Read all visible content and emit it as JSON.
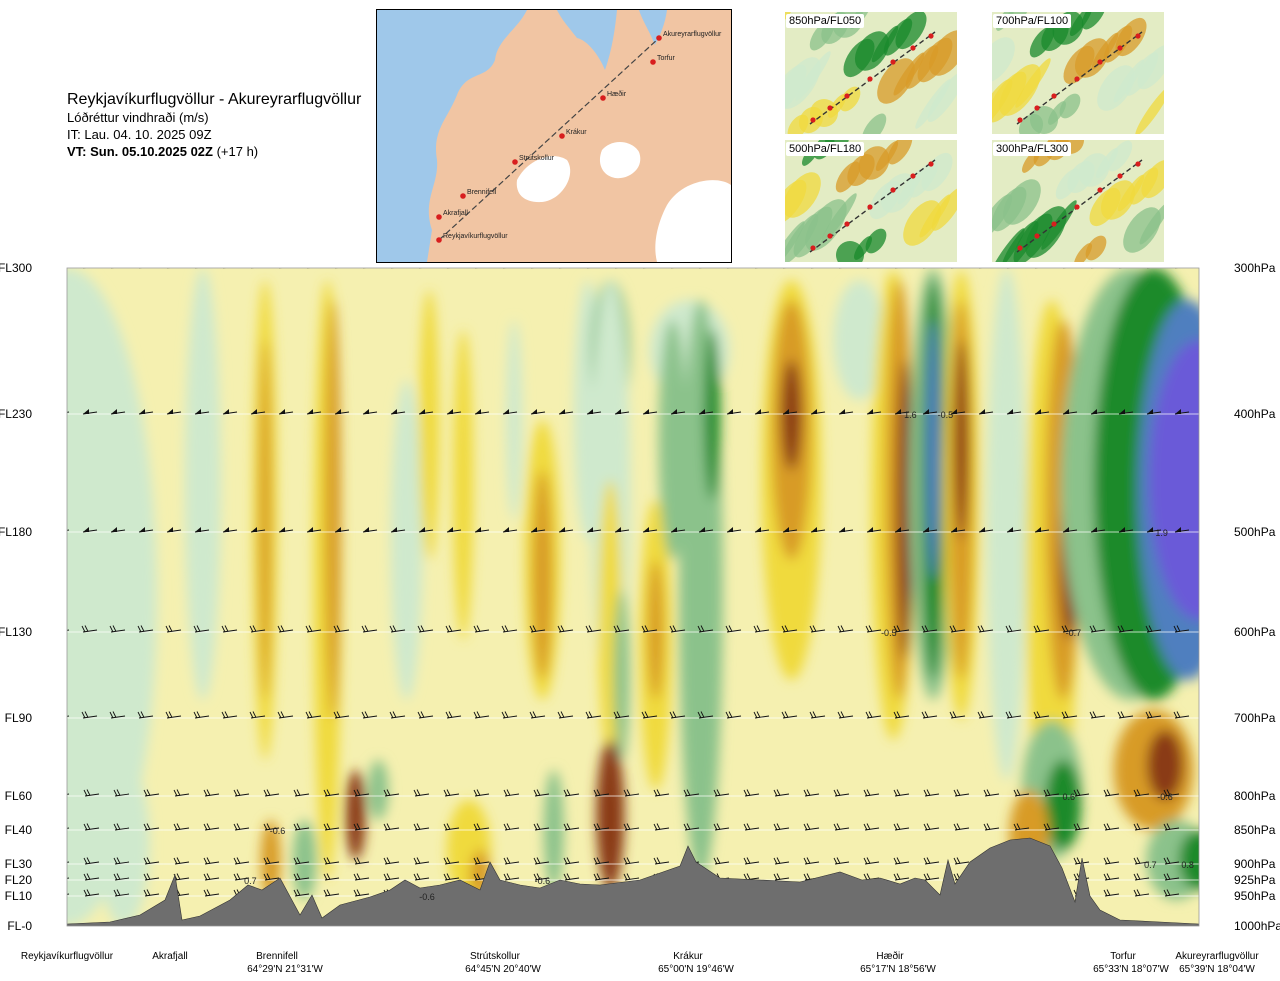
{
  "header": {
    "title": "Reykjavíkurflugvöllur - Akureyrarflugvöllur",
    "subtitle": "Lóðréttur vindhraði (m/s)",
    "issue_time": "IT: Lau. 04. 10. 2025 09Z",
    "valid_time": "VT: Sun. 05.10.2025 02Z",
    "lead": " (+17 h)"
  },
  "map": {
    "waypoints": [
      "Akureyrarflugvöllur",
      "Torfur",
      "Hæðir",
      "Krákur",
      "Strútskollur",
      "Brennifell",
      "Akrafjall",
      "Reykjavíkurflugvöllur"
    ],
    "colors": {
      "sea": "#9fc8ea",
      "land": "#f1c5a3",
      "ice": "#ffffff",
      "route": "#d81e1e"
    }
  },
  "minimaps": [
    {
      "label": "850hPa/FL050"
    },
    {
      "label": "700hPa/FL100"
    },
    {
      "label": "500hPa/FL180"
    },
    {
      "label": "300hPa/FL300"
    }
  ],
  "chart_data": {
    "type": "heatmap",
    "title": "Lóðréttur vindhraði (m/s)",
    "left_axis": [
      "FL300",
      "FL230",
      "FL180",
      "FL130",
      "FL90",
      "FL60",
      "FL40",
      "FL30",
      "FL20",
      "FL10",
      "FL-0"
    ],
    "right_axis": [
      "300hPa",
      "400hPa",
      "500hPa",
      "600hPa",
      "700hPa",
      "800hPa",
      "850hPa",
      "900hPa",
      "925hPa",
      "950hPa",
      "1000hPa"
    ],
    "x_stations": [
      {
        "name": "Reykjavíkurflugvöllur",
        "coord": ""
      },
      {
        "name": "Akrafjall",
        "coord": ""
      },
      {
        "name": "Brennifell",
        "coord": "64°29'N 21°31'W"
      },
      {
        "name": "Strútskollur",
        "coord": "64°45'N 20°40'W"
      },
      {
        "name": "Krákur",
        "coord": "65°00'N 19°46'W"
      },
      {
        "name": "Hæðir",
        "coord": "65°17'N 18°56'W"
      },
      {
        "name": "Torfur",
        "coord": "65°33'N 18°07'W"
      },
      {
        "name": "Akureyrarflugvöllur",
        "coord": "65°39'N 18°04'W"
      }
    ],
    "annotations": [
      {
        "text": "1.6",
        "level": "FL230",
        "station_frac": 0.745
      },
      {
        "text": "-0.5",
        "level": "FL230",
        "station_frac": 0.776
      },
      {
        "text": "1.9",
        "level": "FL180",
        "station_frac": 0.967
      },
      {
        "text": "-0.5",
        "level": "FL130",
        "station_frac": 0.726
      },
      {
        "text": "-0.7",
        "level": "FL130",
        "station_frac": 0.889
      },
      {
        "text": "0.6",
        "level": "FL60",
        "station_frac": 0.885
      },
      {
        "text": "-0.6",
        "level": "FL60",
        "station_frac": 0.97
      },
      {
        "text": "-0.6",
        "level": "FL40",
        "station_frac": 0.186
      },
      {
        "text": "0.7",
        "level": "FL30",
        "station_frac": 0.957
      },
      {
        "text": "0.8",
        "level": "FL30",
        "station_frac": 0.99
      },
      {
        "text": "0.7",
        "level": "FL20",
        "station_frac": 0.162
      },
      {
        "text": "-0.6",
        "level": "FL20",
        "station_frac": 0.42
      },
      {
        "text": "-0.6",
        "level": "FL10",
        "station_frac": 0.318
      }
    ],
    "colorbar": {
      "strong_down": "#8a3b12",
      "down": "#d89b28",
      "weak_down": "#f0da3d",
      "neutral": "#f5f0b0",
      "weak_up": "#cfe9cd",
      "up": "#8bc28b",
      "strong_up": "#1a8a2c",
      "very_strong_up": "#4f7fbf",
      "max_up": "#6a5ad8"
    },
    "terrain_color": "#6e6e6e"
  }
}
